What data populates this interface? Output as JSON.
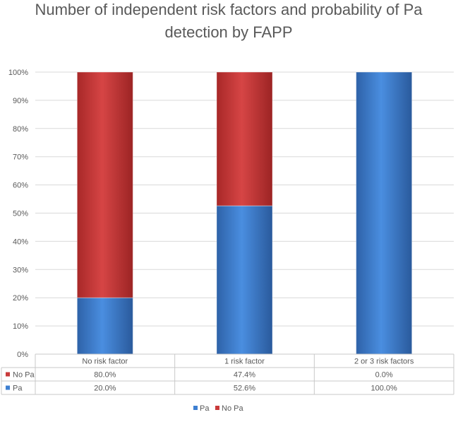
{
  "chart_data": {
    "type": "bar",
    "stacked": true,
    "percent_stacked": true,
    "title_lines": [
      "Number of independent risk factors and probability of Pa",
      "detection by FAPP"
    ],
    "categories": [
      "No risk factor",
      "1 risk factor",
      "2 or 3 risk factors"
    ],
    "series": [
      {
        "name": "Pa",
        "values": [
          20.0,
          52.6,
          100.0
        ],
        "labels": [
          "20.0%",
          "52.6%",
          "100.0%"
        ],
        "color": "#3d7fd1"
      },
      {
        "name": "No Pa",
        "values": [
          80.0,
          47.4,
          0.0
        ],
        "labels": [
          "80.0%",
          "47.4%",
          "0.0%"
        ],
        "color": "#c93a3a"
      }
    ],
    "yticks": [
      "0%",
      "10%",
      "20%",
      "30%",
      "40%",
      "50%",
      "60%",
      "70%",
      "80%",
      "90%",
      "100%"
    ],
    "ylim": [
      0,
      100
    ],
    "grid": true,
    "data_table": true,
    "legend": {
      "position": "bottom",
      "entries": [
        "Pa",
        "No Pa"
      ]
    }
  }
}
